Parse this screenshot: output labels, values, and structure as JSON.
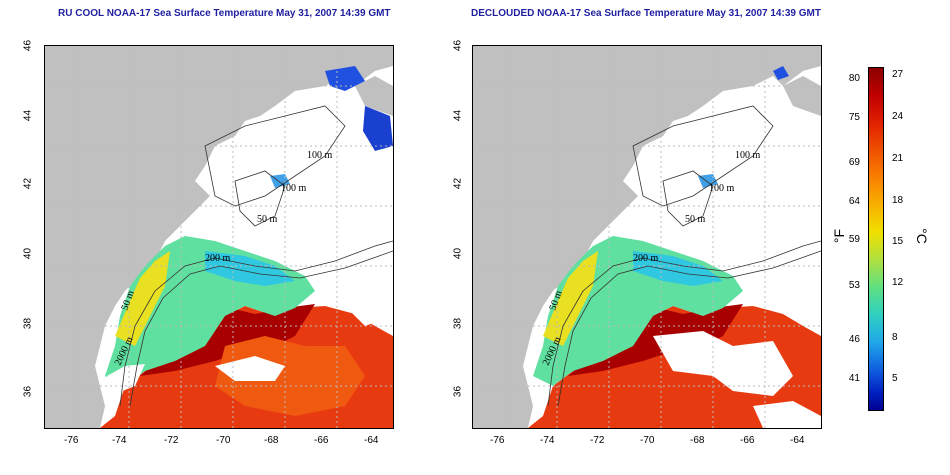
{
  "titles": {
    "left": "RU COOL NOAA-17 Sea Surface Temperature May 31, 2007 14:39 GMT",
    "right": "DECLOUDED NOAA-17 Sea Surface Temperature May 31, 2007 14:39 GMT"
  },
  "axes": {
    "x_ticks": [
      "-76",
      "-74",
      "-72",
      "-70",
      "-68",
      "-66",
      "-64"
    ],
    "y_ticks": [
      "46",
      "44",
      "42",
      "40",
      "38",
      "36"
    ]
  },
  "contour_labels": [
    "100 m",
    "100 m",
    "50 m",
    "200 m",
    "50 m",
    "2000 m"
  ],
  "colorbar": {
    "fahrenheit_unit": "°F",
    "celsius_unit": "°C",
    "fahrenheit_ticks": [
      "80",
      "75",
      "69",
      "64",
      "59",
      "53",
      "46",
      "41"
    ],
    "celsius_ticks": [
      "27",
      "24",
      "21",
      "18",
      "15",
      "12",
      "8",
      "5"
    ]
  },
  "colors": {
    "title": "#1f1fa0",
    "land": "#c0c0c0",
    "warm": "#d42000",
    "cool": "#40d8a0",
    "cold": "#2050e0"
  }
}
